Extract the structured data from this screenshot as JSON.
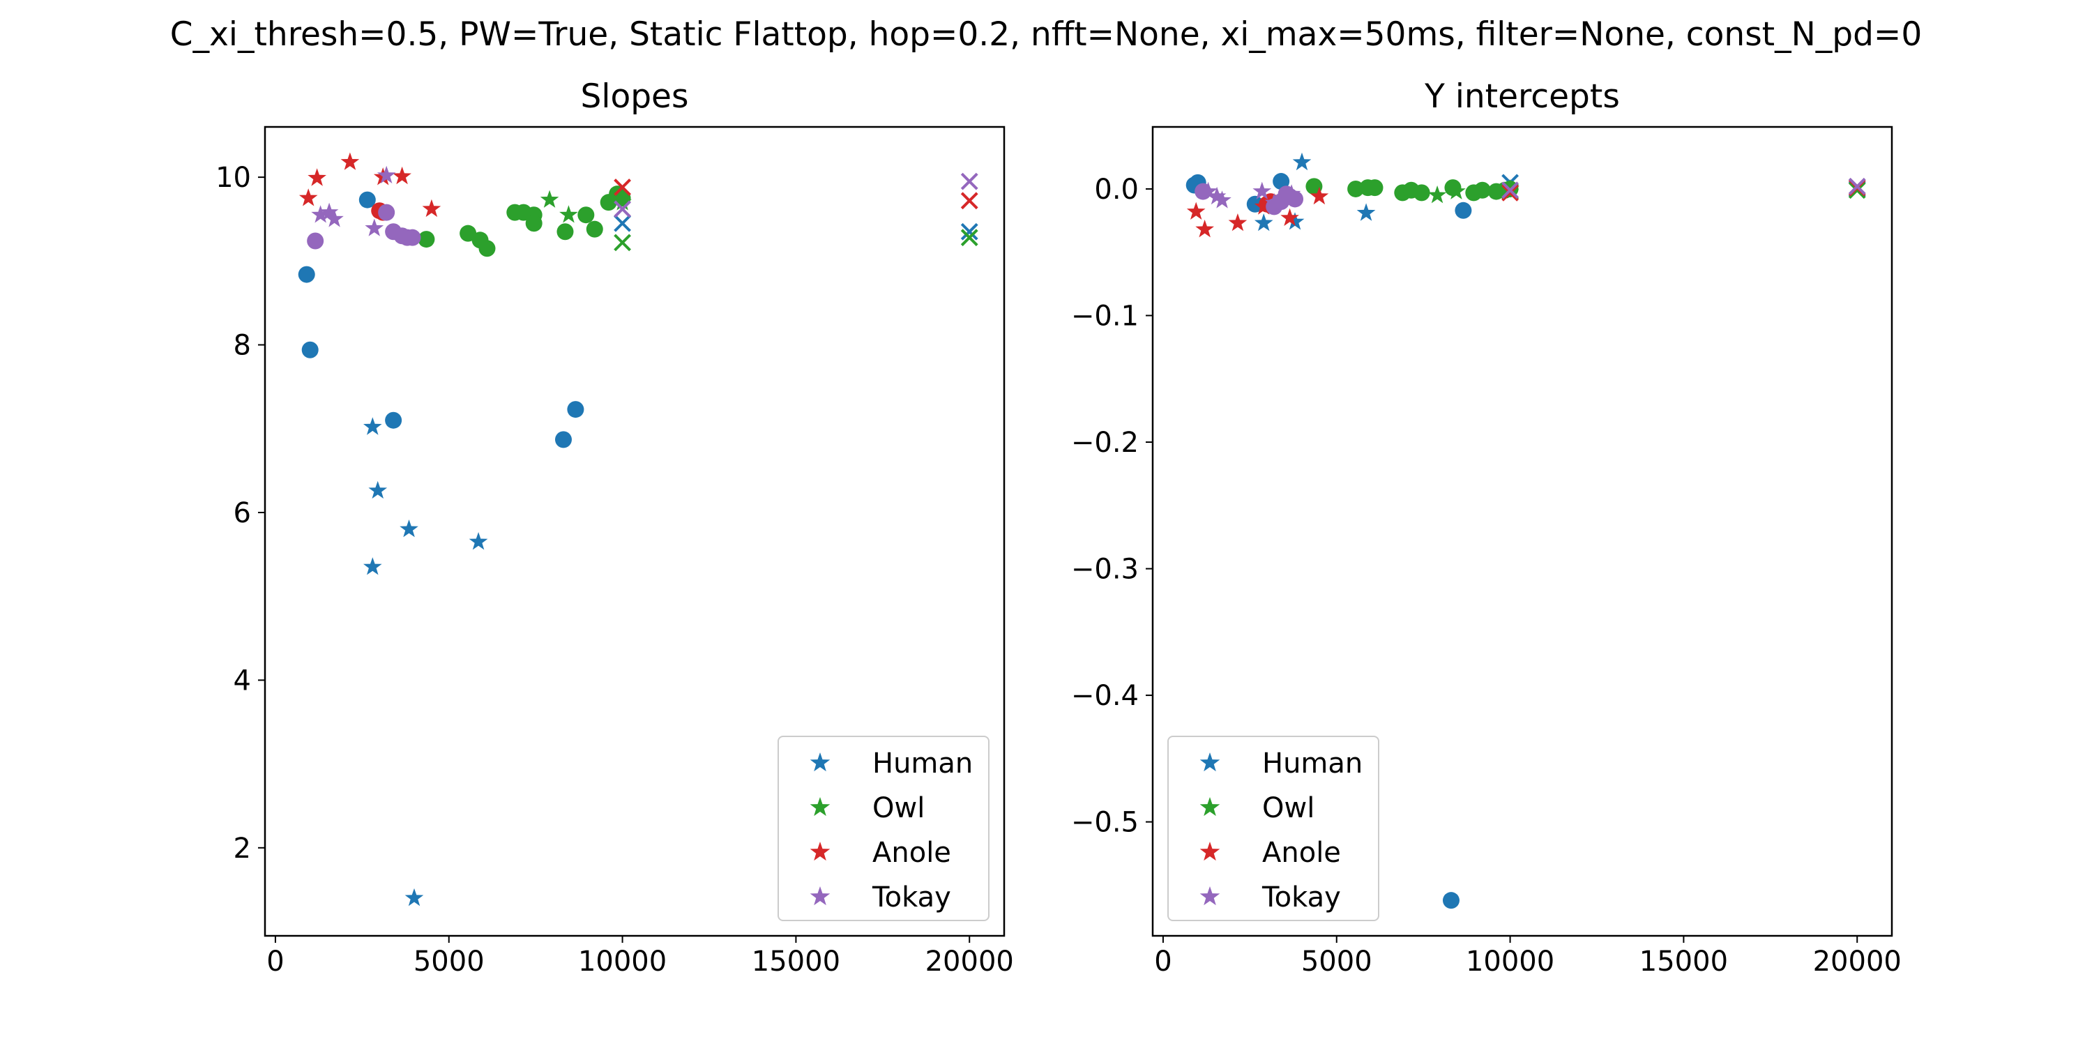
{
  "suptitle": "C_xi_thresh=0.5, PW=True, Static Flattop, hop=0.2, nfft=None, xi_max=50ms, filter=None, const_N_pd=0",
  "colors": {
    "Human": "#1f77b4",
    "Owl": "#2ca02c",
    "Anole": "#d62728",
    "Tokay": "#9467bd"
  },
  "chart_data": [
    {
      "type": "scatter",
      "title": "Slopes",
      "xlabel": "",
      "ylabel": "",
      "xlim": [
        -300,
        21000
      ],
      "ylim": [
        0.95,
        10.6
      ],
      "xticks": [
        0,
        5000,
        10000,
        15000,
        20000
      ],
      "xtick_labels": [
        "0",
        "5000",
        "10000",
        "15000",
        "20000"
      ],
      "yticks": [
        2,
        4,
        6,
        8,
        10
      ],
      "ytick_labels": [
        "2",
        "4",
        "6",
        "8",
        "10"
      ],
      "legend": {
        "placement": "lower right",
        "marker": "star",
        "entries": [
          "Human",
          "Owl",
          "Anole",
          "Tokay"
        ]
      },
      "series": [
        {
          "name": "Human",
          "color": "#1f77b4",
          "marker": "star",
          "points": [
            [
              2800,
              7.02
            ],
            [
              2950,
              6.26
            ],
            [
              2800,
              5.35
            ],
            [
              3850,
              5.8
            ],
            [
              5850,
              5.65
            ],
            [
              4000,
              1.4
            ]
          ]
        },
        {
          "name": "Human",
          "color": "#1f77b4",
          "marker": "circle",
          "points": [
            [
              900,
              8.84
            ],
            [
              1000,
              7.94
            ],
            [
              2650,
              9.73
            ],
            [
              3400,
              7.1
            ],
            [
              8300,
              6.87
            ],
            [
              8650,
              7.23
            ]
          ]
        },
        {
          "name": "Human",
          "color": "#1f77b4",
          "marker": "x",
          "points": [
            [
              10000,
              9.45
            ],
            [
              20000,
              9.35
            ]
          ]
        },
        {
          "name": "Owl",
          "color": "#2ca02c",
          "marker": "star",
          "points": [
            [
              7900,
              9.73
            ],
            [
              8450,
              9.55
            ],
            [
              10000,
              9.7
            ]
          ]
        },
        {
          "name": "Owl",
          "color": "#2ca02c",
          "marker": "circle",
          "points": [
            [
              4350,
              9.26
            ],
            [
              5550,
              9.33
            ],
            [
              5900,
              9.25
            ],
            [
              6100,
              9.15
            ],
            [
              6900,
              9.58
            ],
            [
              7150,
              9.58
            ],
            [
              7450,
              9.55
            ],
            [
              7450,
              9.45
            ],
            [
              8350,
              9.35
            ],
            [
              8950,
              9.55
            ],
            [
              9200,
              9.38
            ],
            [
              9600,
              9.7
            ],
            [
              9850,
              9.8
            ],
            [
              10000,
              9.75
            ]
          ]
        },
        {
          "name": "Owl",
          "color": "#2ca02c",
          "marker": "x",
          "points": [
            [
              10000,
              9.22
            ],
            [
              20000,
              9.28
            ]
          ]
        },
        {
          "name": "Anole",
          "color": "#d62728",
          "marker": "star",
          "points": [
            [
              950,
              9.75
            ],
            [
              1200,
              9.99
            ],
            [
              2150,
              10.18
            ],
            [
              3100,
              10.0
            ],
            [
              3650,
              10.01
            ],
            [
              4500,
              9.62
            ]
          ]
        },
        {
          "name": "Anole",
          "color": "#d62728",
          "marker": "circle",
          "points": [
            [
              3000,
              9.6
            ],
            [
              3100,
              9.58
            ]
          ]
        },
        {
          "name": "Anole",
          "color": "#d62728",
          "marker": "x",
          "points": [
            [
              10000,
              9.88
            ],
            [
              20000,
              9.72
            ]
          ]
        },
        {
          "name": "Tokay",
          "color": "#9467bd",
          "marker": "star",
          "points": [
            [
              1300,
              9.55
            ],
            [
              1550,
              9.58
            ],
            [
              1700,
              9.5
            ],
            [
              2850,
              9.39
            ],
            [
              3200,
              10.02
            ]
          ]
        },
        {
          "name": "Tokay",
          "color": "#9467bd",
          "marker": "circle",
          "points": [
            [
              1150,
              9.24
            ],
            [
              3200,
              9.58
            ],
            [
              3400,
              9.35
            ],
            [
              3650,
              9.3
            ],
            [
              3800,
              9.28
            ],
            [
              3950,
              9.28
            ]
          ]
        },
        {
          "name": "Tokay",
          "color": "#9467bd",
          "marker": "x",
          "points": [
            [
              10000,
              9.62
            ],
            [
              20000,
              9.95
            ]
          ]
        }
      ]
    },
    {
      "type": "scatter",
      "title": "Y intercepts",
      "xlabel": "",
      "ylabel": "",
      "xlim": [
        -300,
        21000
      ],
      "ylim": [
        -0.59,
        0.049
      ],
      "xticks": [
        0,
        5000,
        10000,
        15000,
        20000
      ],
      "xtick_labels": [
        "0",
        "5000",
        "10000",
        "15000",
        "20000"
      ],
      "yticks": [
        0.0,
        -0.1,
        -0.2,
        -0.3,
        -0.4,
        -0.5
      ],
      "ytick_labels": [
        "0.0",
        "−0.1",
        "−0.2",
        "−0.3",
        "−0.4",
        "−0.5"
      ],
      "legend": {
        "placement": "lower left",
        "marker": "star",
        "entries": [
          "Human",
          "Owl",
          "Anole",
          "Tokay"
        ]
      },
      "series": [
        {
          "name": "Human",
          "color": "#1f77b4",
          "marker": "star",
          "points": [
            [
              2900,
              -0.027
            ],
            [
              3800,
              -0.026
            ],
            [
              4000,
              0.021
            ],
            [
              5850,
              -0.019
            ]
          ]
        },
        {
          "name": "Human",
          "color": "#1f77b4",
          "marker": "circle",
          "points": [
            [
              900,
              0.003
            ],
            [
              1000,
              0.005
            ],
            [
              2650,
              -0.012
            ],
            [
              3400,
              0.006
            ],
            [
              8650,
              -0.017
            ],
            [
              8300,
              -0.562
            ]
          ]
        },
        {
          "name": "Human",
          "color": "#1f77b4",
          "marker": "x",
          "points": [
            [
              10000,
              0.005
            ],
            [
              20000,
              0.0
            ]
          ]
        },
        {
          "name": "Owl",
          "color": "#2ca02c",
          "marker": "star",
          "points": [
            [
              7900,
              -0.005
            ],
            [
              8450,
              -0.002
            ],
            [
              10000,
              0.0
            ]
          ]
        },
        {
          "name": "Owl",
          "color": "#2ca02c",
          "marker": "circle",
          "points": [
            [
              4350,
              0.002
            ],
            [
              5550,
              0.0
            ],
            [
              5900,
              0.001
            ],
            [
              6100,
              0.001
            ],
            [
              6900,
              -0.003
            ],
            [
              7150,
              -0.001
            ],
            [
              7450,
              -0.003
            ],
            [
              8350,
              0.001
            ],
            [
              8950,
              -0.003
            ],
            [
              9200,
              -0.001
            ],
            [
              9600,
              -0.002
            ],
            [
              9850,
              -0.001
            ],
            [
              10000,
              0.0
            ]
          ]
        },
        {
          "name": "Owl",
          "color": "#2ca02c",
          "marker": "x",
          "points": [
            [
              10000,
              -0.002
            ],
            [
              20000,
              -0.001
            ]
          ]
        },
        {
          "name": "Anole",
          "color": "#d62728",
          "marker": "star",
          "points": [
            [
              950,
              -0.018
            ],
            [
              1200,
              -0.032
            ],
            [
              2150,
              -0.027
            ],
            [
              2900,
              -0.014
            ],
            [
              3650,
              -0.023
            ],
            [
              4500,
              -0.006
            ]
          ]
        },
        {
          "name": "Anole",
          "color": "#d62728",
          "marker": "circle",
          "points": [
            [
              3000,
              -0.012
            ],
            [
              3100,
              -0.01
            ]
          ]
        },
        {
          "name": "Anole",
          "color": "#d62728",
          "marker": "x",
          "points": [
            [
              10000,
              -0.003
            ],
            [
              20000,
              0.001
            ]
          ]
        },
        {
          "name": "Tokay",
          "color": "#9467bd",
          "marker": "star",
          "points": [
            [
              1300,
              -0.002
            ],
            [
              1550,
              -0.006
            ],
            [
              1700,
              -0.009
            ],
            [
              2850,
              -0.002
            ],
            [
              3200,
              -0.011
            ],
            [
              3700,
              -0.004
            ]
          ]
        },
        {
          "name": "Tokay",
          "color": "#9467bd",
          "marker": "circle",
          "points": [
            [
              1150,
              -0.002
            ],
            [
              3200,
              -0.014
            ],
            [
              3400,
              -0.01
            ],
            [
              3550,
              -0.004
            ],
            [
              3650,
              -0.006
            ],
            [
              3800,
              -0.008
            ]
          ]
        },
        {
          "name": "Tokay",
          "color": "#9467bd",
          "marker": "x",
          "points": [
            [
              10000,
              -0.001
            ],
            [
              20000,
              0.002
            ]
          ]
        }
      ]
    }
  ]
}
